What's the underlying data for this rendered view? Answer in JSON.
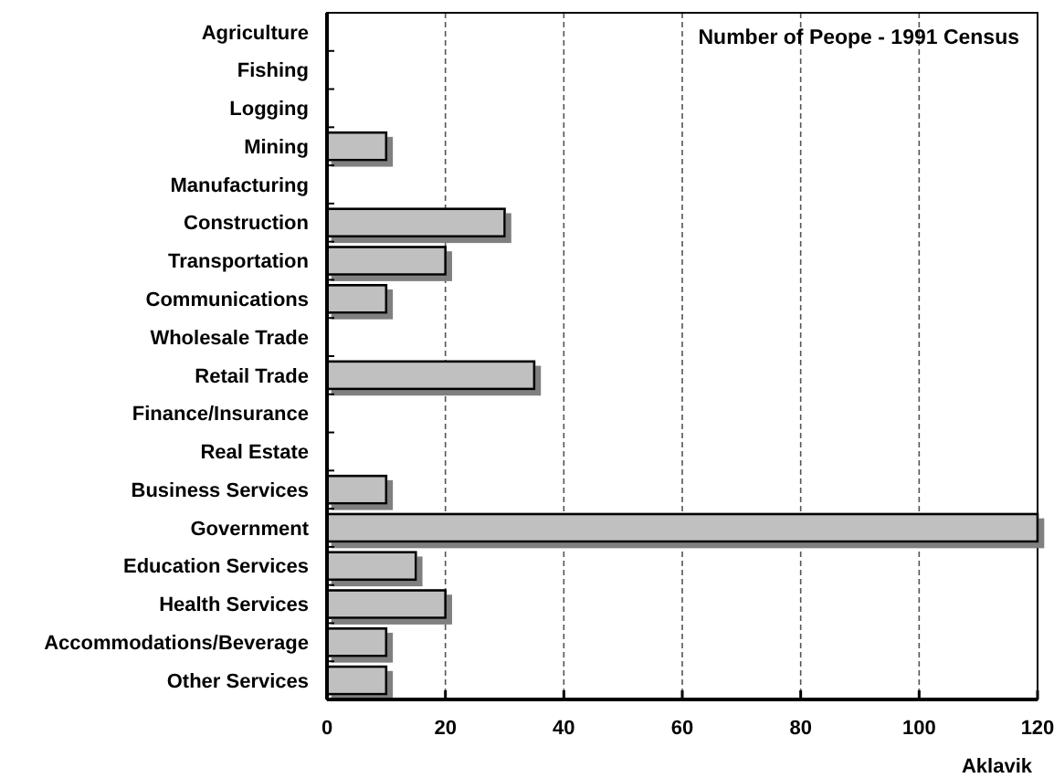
{
  "chart_data": {
    "type": "bar",
    "orientation": "horizontal",
    "title": "Number of Peope - 1991 Census",
    "xlabel": "Aklavik",
    "categories": [
      "Agriculture",
      "Fishing",
      "Logging",
      "Mining",
      "Manufacturing",
      "Construction",
      "Transportation",
      "Communications",
      "Wholesale Trade",
      "Retail Trade",
      "Finance/Insurance",
      "Real Estate",
      "Business Services",
      "Government",
      "Education Services",
      "Health Services",
      "Accommodations/Beverage",
      "Other Services"
    ],
    "values": [
      0,
      0,
      0,
      10,
      0,
      30,
      20,
      10,
      0,
      35,
      0,
      0,
      10,
      120,
      15,
      20,
      10,
      10
    ],
    "color": "#c0c0c0",
    "xlim": [
      0,
      120
    ],
    "xticks": [
      0,
      20,
      40,
      60,
      80,
      100,
      120
    ],
    "grid": "x"
  }
}
